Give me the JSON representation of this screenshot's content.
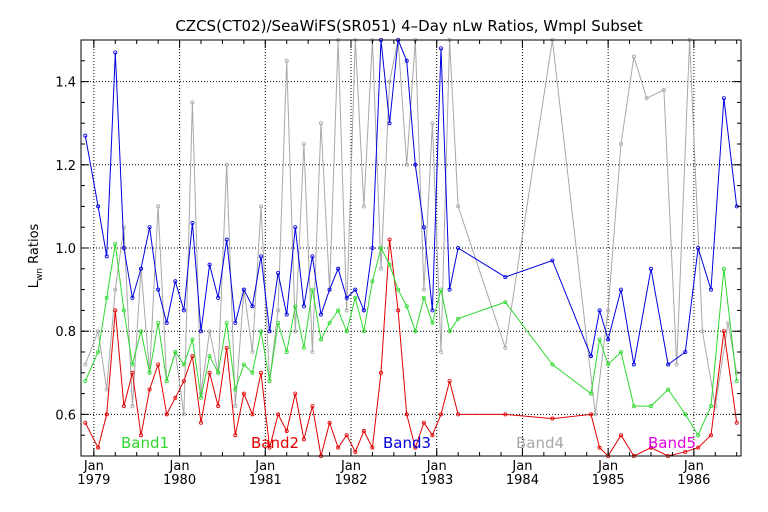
{
  "chart_data": {
    "type": "line",
    "title": "CZCS(CT02)/SeaWiFS(SR051) 4–Day nLw Ratios, Wmpl Subset",
    "ylabel_main": "L",
    "ylabel_sub": "wn",
    "ylabel_rest": " Ratios",
    "xlabel": "",
    "xlim": [
      1978.85,
      1986.55
    ],
    "ylim": [
      0.5,
      1.5
    ],
    "yticks": [
      0.6,
      0.8,
      1.0,
      1.2,
      1.4
    ],
    "ytick_labels": [
      "0.6",
      "0.8",
      "1.0",
      "1.2",
      "1.4"
    ],
    "xticks": [
      {
        "value": 1979.0,
        "month": "Jan",
        "year": "1979"
      },
      {
        "value": 1980.0,
        "month": "Jan",
        "year": "1980"
      },
      {
        "value": 1981.0,
        "month": "Jan",
        "year": "1981"
      },
      {
        "value": 1982.0,
        "month": "Jan",
        "year": "1982"
      },
      {
        "value": 1983.0,
        "month": "Jan",
        "year": "1983"
      },
      {
        "value": 1984.0,
        "month": "Jan",
        "year": "1984"
      },
      {
        "value": 1985.0,
        "month": "Jan",
        "year": "1985"
      },
      {
        "value": 1986.0,
        "month": "Jan",
        "year": "1986"
      }
    ],
    "grid": true,
    "legend_placement": "bottom",
    "series": [
      {
        "name": "Band4",
        "color": "#a8a8a8",
        "x": [
          1978.9,
          1979.05,
          1979.15,
          1979.25,
          1979.35,
          1979.45,
          1979.55,
          1979.65,
          1979.75,
          1979.85,
          1979.95,
          1980.05,
          1980.15,
          1980.25,
          1980.35,
          1980.45,
          1980.55,
          1980.65,
          1980.75,
          1980.85,
          1980.95,
          1981.05,
          1981.15,
          1981.25,
          1981.35,
          1981.45,
          1981.55,
          1981.65,
          1981.75,
          1981.85,
          1981.95,
          1982.05,
          1982.15,
          1982.25,
          1982.35,
          1982.45,
          1982.55,
          1982.65,
          1982.75,
          1982.85,
          1982.95,
          1983.05,
          1983.15,
          1983.25,
          1983.8,
          1984.35,
          1984.85,
          1985.0,
          1985.15,
          1985.3,
          1985.45,
          1985.65,
          1985.8,
          1985.95,
          1986.1,
          1986.25,
          1986.4,
          1986.5
        ],
        "y": [
          0.72,
          0.8,
          0.66,
          0.9,
          1.05,
          0.62,
          0.95,
          0.7,
          1.1,
          0.68,
          0.75,
          0.6,
          1.35,
          0.65,
          0.8,
          0.7,
          1.2,
          0.62,
          0.9,
          0.75,
          1.1,
          0.68,
          0.85,
          1.45,
          0.8,
          1.25,
          0.75,
          1.3,
          0.9,
          1.5,
          0.85,
          1.5,
          1.1,
          1.5,
          0.95,
          1.4,
          1.5,
          1.2,
          1.5,
          0.9,
          1.3,
          0.75,
          1.5,
          1.1,
          0.76,
          1.5,
          0.6,
          0.85,
          1.25,
          1.46,
          1.36,
          1.38,
          0.72,
          1.5,
          0.8,
          0.62,
          0.82,
          0.7
        ]
      },
      {
        "name": "Band2",
        "color": "#e00000",
        "x": [
          1978.9,
          1979.05,
          1979.15,
          1979.25,
          1979.35,
          1979.45,
          1979.55,
          1979.65,
          1979.75,
          1979.85,
          1979.95,
          1980.05,
          1980.15,
          1980.25,
          1980.35,
          1980.45,
          1980.55,
          1980.65,
          1980.75,
          1980.85,
          1980.95,
          1981.05,
          1981.15,
          1981.25,
          1981.35,
          1981.45,
          1981.55,
          1981.65,
          1981.75,
          1981.85,
          1981.95,
          1982.05,
          1982.15,
          1982.25,
          1982.35,
          1982.45,
          1982.55,
          1982.65,
          1982.75,
          1982.85,
          1982.95,
          1983.05,
          1983.15,
          1983.25,
          1983.8,
          1984.35,
          1984.8,
          1984.9,
          1985.0,
          1985.15,
          1985.3,
          1985.5,
          1985.7,
          1985.9,
          1986.05,
          1986.2,
          1986.35,
          1986.5
        ],
        "y": [
          0.58,
          0.52,
          0.6,
          0.85,
          0.62,
          0.7,
          0.55,
          0.66,
          0.72,
          0.6,
          0.64,
          0.68,
          0.74,
          0.58,
          0.7,
          0.62,
          0.76,
          0.55,
          0.65,
          0.6,
          0.7,
          0.52,
          0.6,
          0.56,
          0.65,
          0.54,
          0.62,
          0.5,
          0.58,
          0.52,
          0.55,
          0.51,
          0.56,
          0.52,
          0.7,
          1.02,
          0.85,
          0.6,
          0.52,
          0.58,
          0.55,
          0.6,
          0.68,
          0.6,
          0.6,
          0.59,
          0.6,
          0.52,
          0.5,
          0.55,
          0.5,
          0.52,
          0.5,
          0.51,
          0.52,
          0.55,
          0.8,
          0.58
        ]
      },
      {
        "name": "Band1",
        "color": "#2ed82e",
        "x": [
          1978.9,
          1979.05,
          1979.15,
          1979.25,
          1979.35,
          1979.45,
          1979.55,
          1979.65,
          1979.75,
          1979.85,
          1979.95,
          1980.05,
          1980.15,
          1980.25,
          1980.35,
          1980.45,
          1980.55,
          1980.65,
          1980.75,
          1980.85,
          1980.95,
          1981.05,
          1981.15,
          1981.25,
          1981.35,
          1981.45,
          1981.55,
          1981.65,
          1981.75,
          1981.85,
          1981.95,
          1982.05,
          1982.15,
          1982.25,
          1982.35,
          1982.45,
          1982.55,
          1982.65,
          1982.75,
          1982.85,
          1982.95,
          1983.05,
          1983.15,
          1983.25,
          1983.8,
          1984.35,
          1984.8,
          1984.9,
          1985.0,
          1985.15,
          1985.3,
          1985.5,
          1985.7,
          1985.9,
          1986.05,
          1986.2,
          1986.35,
          1986.5
        ],
        "y": [
          0.68,
          0.75,
          0.88,
          1.01,
          0.85,
          0.72,
          0.8,
          0.7,
          0.82,
          0.68,
          0.75,
          0.72,
          0.78,
          0.64,
          0.74,
          0.7,
          0.82,
          0.66,
          0.72,
          0.7,
          0.8,
          0.68,
          0.82,
          0.75,
          0.86,
          0.76,
          0.9,
          0.78,
          0.82,
          0.85,
          0.8,
          0.88,
          0.8,
          0.92,
          1.0,
          0.96,
          0.9,
          0.86,
          0.8,
          0.88,
          0.82,
          0.9,
          0.8,
          0.83,
          0.87,
          0.72,
          0.65,
          0.78,
          0.72,
          0.75,
          0.62,
          0.62,
          0.66,
          0.6,
          0.55,
          0.62,
          0.95,
          0.68
        ]
      },
      {
        "name": "Band3",
        "color": "#0000e0",
        "x": [
          1978.9,
          1979.05,
          1979.15,
          1979.25,
          1979.35,
          1979.45,
          1979.55,
          1979.65,
          1979.75,
          1979.85,
          1979.95,
          1980.05,
          1980.15,
          1980.25,
          1980.35,
          1980.45,
          1980.55,
          1980.65,
          1980.75,
          1980.85,
          1980.95,
          1981.05,
          1981.15,
          1981.25,
          1981.35,
          1981.45,
          1981.55,
          1981.65,
          1981.75,
          1981.85,
          1981.95,
          1982.05,
          1982.15,
          1982.25,
          1982.35,
          1982.45,
          1982.55,
          1982.65,
          1982.75,
          1982.85,
          1982.95,
          1983.05,
          1983.15,
          1983.25,
          1983.8,
          1984.35,
          1984.8,
          1984.9,
          1985.0,
          1985.15,
          1985.3,
          1985.5,
          1985.7,
          1985.9,
          1986.05,
          1986.2,
          1986.35,
          1986.5
        ],
        "y": [
          1.27,
          1.1,
          0.98,
          1.47,
          1.0,
          0.88,
          0.95,
          1.05,
          0.9,
          0.82,
          0.92,
          0.85,
          1.06,
          0.8,
          0.96,
          0.88,
          1.02,
          0.82,
          0.9,
          0.86,
          0.98,
          0.8,
          0.94,
          0.84,
          1.05,
          0.86,
          0.98,
          0.84,
          0.9,
          0.95,
          0.88,
          0.9,
          0.85,
          1.0,
          1.5,
          1.3,
          1.5,
          1.45,
          1.2,
          1.05,
          0.85,
          1.48,
          0.9,
          1.0,
          0.93,
          0.97,
          0.74,
          0.85,
          0.78,
          0.9,
          0.72,
          0.95,
          0.72,
          0.75,
          1.0,
          0.9,
          1.36,
          1.1
        ]
      },
      {
        "name": "Band5",
        "color": "#e000e0",
        "x": [],
        "y": []
      }
    ]
  }
}
